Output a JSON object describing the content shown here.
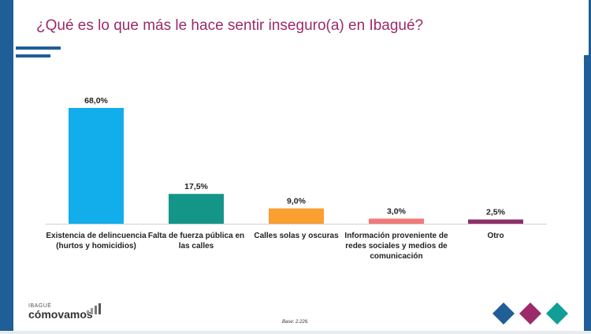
{
  "slide": {
    "title": "¿Qué es lo que más le hace sentir inseguro(a) en Ibagué?",
    "base_note": "Base: 2.226.",
    "logo_small": "IBAGUÉ",
    "logo_big": "cómovamos"
  },
  "colors": {
    "brand_blue": "#1f5e96",
    "title_magenta": "#9c2a6b",
    "diamond_colors": [
      "#1f5e96",
      "#9c2a6b",
      "#119e96"
    ]
  },
  "chart_data": {
    "type": "bar",
    "categories": [
      [
        "Existencia de delincuencia",
        "(hurtos y homicidios)"
      ],
      [
        "Falta de fuerza pública en",
        "las calles"
      ],
      [
        "Calles solas y oscuras"
      ],
      [
        "Información proveniente de",
        "redes sociales y medios de",
        "comunicación"
      ],
      [
        "Otro"
      ]
    ],
    "values": [
      68.0,
      17.5,
      9.0,
      3.0,
      2.5
    ],
    "data_labels": [
      "68,0%",
      "17,5%",
      "9,0%",
      "3,0%",
      "2,5%"
    ],
    "bar_colors": [
      "#12adeb",
      "#139688",
      "#fa9f30",
      "#f07a78",
      "#8e2f6b"
    ],
    "ylim": [
      0,
      68
    ],
    "grid": false,
    "legend": "none"
  }
}
